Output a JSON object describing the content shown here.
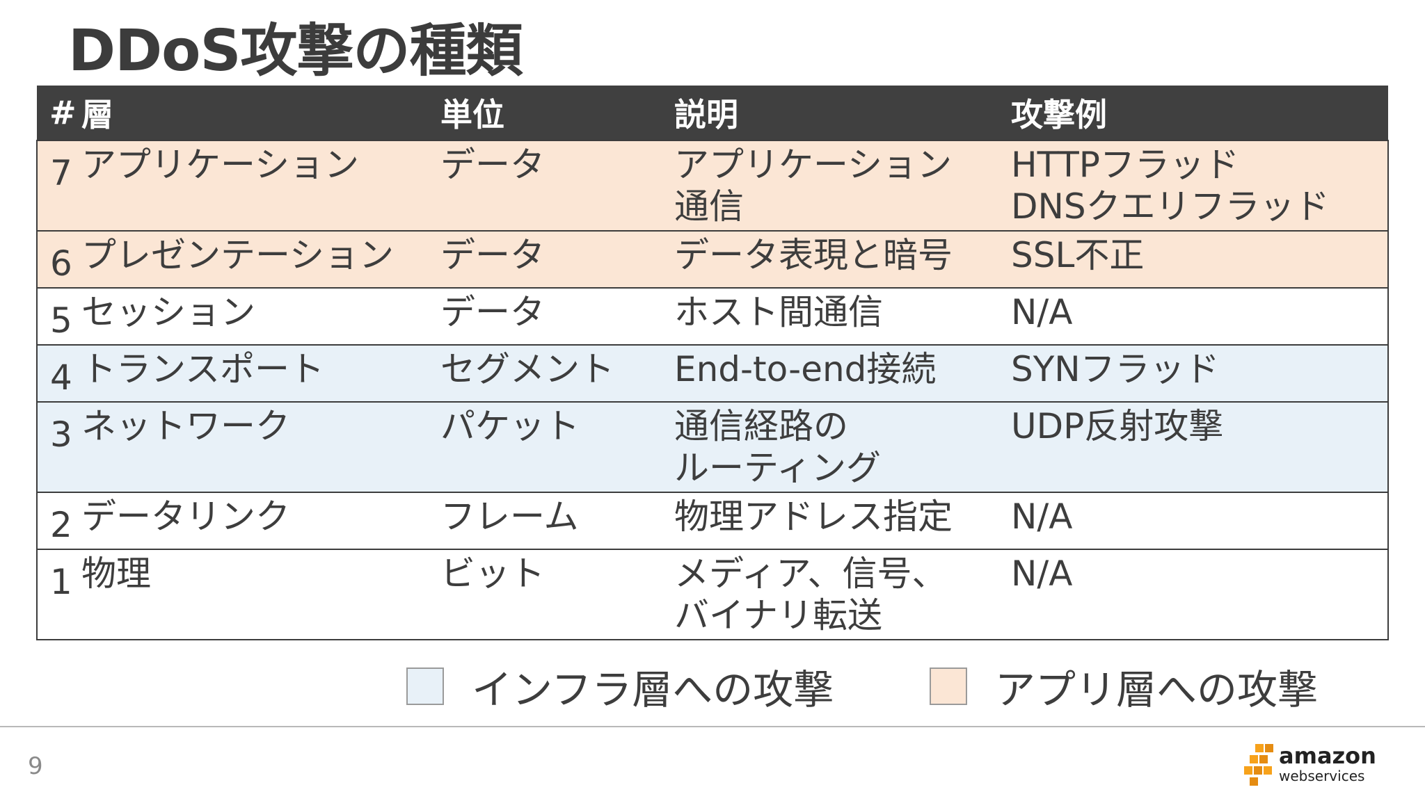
{
  "title": "DDoS攻撃の種類",
  "table": {
    "headers": {
      "num": "#",
      "layer": "層",
      "unit": "単位",
      "description": "説明",
      "example": "攻撃例"
    },
    "rows": [
      {
        "num": "7",
        "layer": "アプリケーション",
        "unit": "データ",
        "desc_line1": "アプリケーション",
        "desc_line2": "通信",
        "ex_line1": "HTTPフラッド",
        "ex_line2": "DNSクエリフラッド",
        "category": "app"
      },
      {
        "num": "6",
        "layer": "プレゼンテーション",
        "unit": "データ",
        "desc_line1": "データ表現と暗号",
        "desc_line2": "",
        "ex_line1": "SSL不正",
        "ex_line2": "",
        "category": "app"
      },
      {
        "num": "5",
        "layer": "セッション",
        "unit": "データ",
        "desc_line1": "ホスト間通信",
        "desc_line2": "",
        "ex_line1": "N/A",
        "ex_line2": "",
        "category": "none"
      },
      {
        "num": "4",
        "layer": "トランスポート",
        "unit": "セグメント",
        "desc_line1": "End-to-end接続",
        "desc_line2": "",
        "ex_line1": "SYNフラッド",
        "ex_line2": "",
        "category": "infra"
      },
      {
        "num": "3",
        "layer": "ネットワーク",
        "unit": "パケット",
        "desc_line1": "通信経路の",
        "desc_line2": "ルーティング",
        "ex_line1": "UDP反射攻撃",
        "ex_line2": "",
        "category": "infra"
      },
      {
        "num": "2",
        "layer": "データリンク",
        "unit": "フレーム",
        "desc_line1": "物理アドレス指定",
        "desc_line2": "",
        "ex_line1": "N/A",
        "ex_line2": "",
        "category": "none"
      },
      {
        "num": "1",
        "layer": "物理",
        "unit": "ビット",
        "desc_line1": "メディア、信号、",
        "desc_line2": "バイナリ転送",
        "ex_line1": "N/A",
        "ex_line2": "",
        "category": "none"
      }
    ]
  },
  "legend": {
    "infra_label": "インフラ層への攻撃",
    "app_label": "アプリ層への攻撃"
  },
  "colors": {
    "app": "#fbe6d5",
    "infra": "#e8f1f8",
    "header": "#404040",
    "logo_orange": "#f7a21b"
  },
  "footer": {
    "page_number": "9",
    "logo_line1": "amazon",
    "logo_line2": "webservices"
  }
}
